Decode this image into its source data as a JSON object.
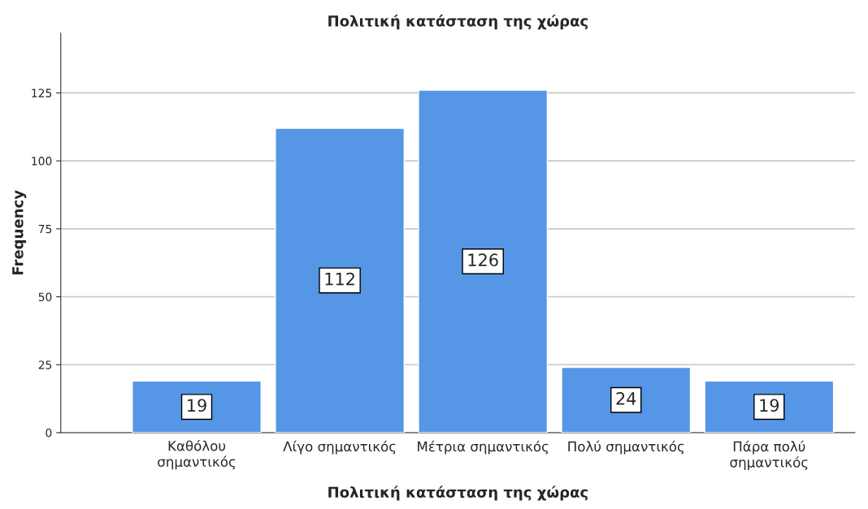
{
  "chart_data": {
    "type": "bar",
    "title": "Πολιτική κατάσταση της χώρας",
    "xlabel": "Πολιτική κατάσταση της χώρας",
    "ylabel": "Frequency",
    "categories": [
      "Καθόλου\nσημαντικός",
      "Λίγο σημαντικός",
      "Μέτρια σημαντικός",
      "Πολύ σημαντικός",
      "Πάρα πολύ\nσημαντικός"
    ],
    "values": [
      19,
      112,
      126,
      24,
      19
    ],
    "color": "#5596e6",
    "ylim": [
      0,
      147
    ],
    "yticks": [
      0,
      25,
      50,
      75,
      100,
      125
    ],
    "grid": "y",
    "data_labels": true
  }
}
